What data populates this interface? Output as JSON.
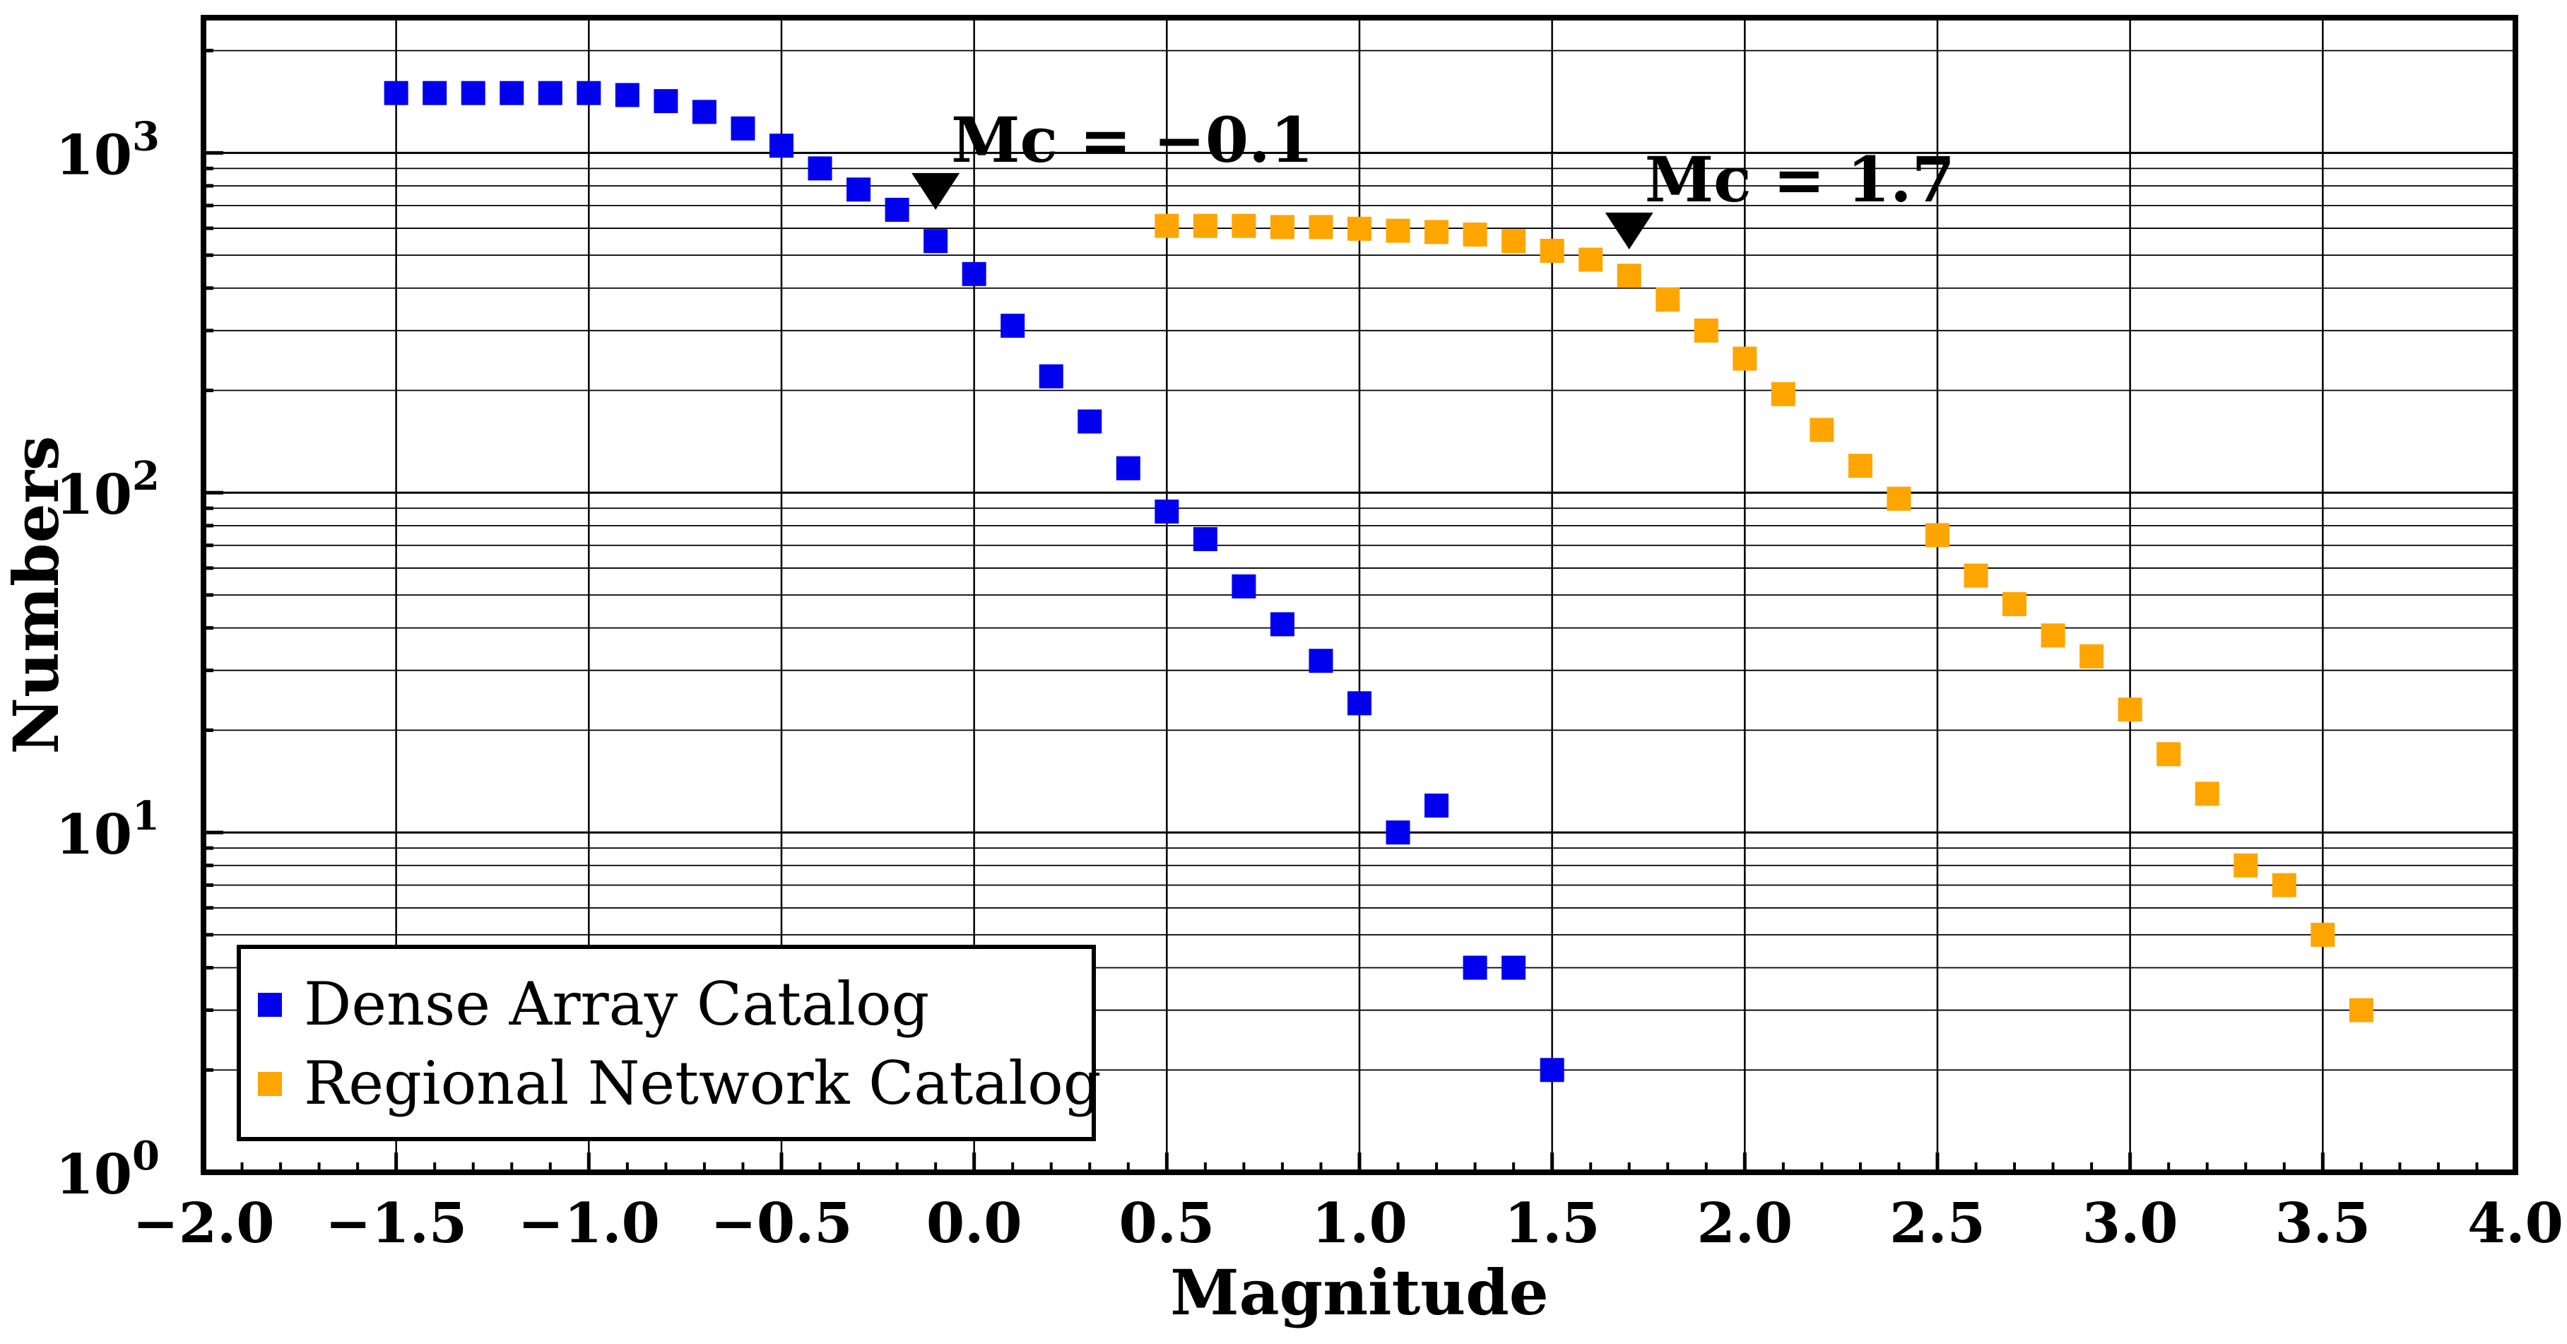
{
  "chart_data": {
    "type": "scatter",
    "title": "",
    "xlabel": "Magnitude",
    "ylabel": "Numbers",
    "xlim": [
      -2.0,
      4.0
    ],
    "ylim": [
      1,
      2500
    ],
    "yscale": "log",
    "grid": true,
    "x_ticks": [
      "−2.0",
      "−1.5",
      "−1.0",
      "−0.5",
      "0.0",
      "0.5",
      "1.0",
      "1.5",
      "2.0",
      "2.5",
      "3.0",
      "3.5",
      "4.0"
    ],
    "y_ticks": [
      {
        "base": "10",
        "exp": "0"
      },
      {
        "base": "10",
        "exp": "1"
      },
      {
        "base": "10",
        "exp": "2"
      },
      {
        "base": "10",
        "exp": "3"
      }
    ],
    "series": [
      {
        "name": "Dense Array Catalog",
        "color": "#0000ee",
        "points": [
          [
            -1.5,
            1500
          ],
          [
            -1.4,
            1500
          ],
          [
            -1.3,
            1500
          ],
          [
            -1.2,
            1500
          ],
          [
            -1.1,
            1500
          ],
          [
            -1.0,
            1500
          ],
          [
            -0.9,
            1480
          ],
          [
            -0.8,
            1420
          ],
          [
            -0.7,
            1320
          ],
          [
            -0.6,
            1180
          ],
          [
            -0.5,
            1050
          ],
          [
            -0.4,
            900
          ],
          [
            -0.3,
            780
          ],
          [
            -0.2,
            680
          ],
          [
            -0.1,
            550
          ],
          [
            0.0,
            440
          ],
          [
            0.1,
            310
          ],
          [
            0.2,
            220
          ],
          [
            0.3,
            162
          ],
          [
            0.4,
            118
          ],
          [
            0.5,
            88
          ],
          [
            0.6,
            73
          ],
          [
            0.7,
            53
          ],
          [
            0.8,
            41
          ],
          [
            0.9,
            32
          ],
          [
            1.0,
            24
          ],
          [
            1.1,
            10
          ],
          [
            1.2,
            12
          ],
          [
            1.3,
            4
          ],
          [
            1.4,
            4
          ],
          [
            1.5,
            2
          ]
        ]
      },
      {
        "name": "Regional Network Catalog",
        "color": "#ffa500",
        "points": [
          [
            0.5,
            610
          ],
          [
            0.6,
            610
          ],
          [
            0.7,
            610
          ],
          [
            0.8,
            605
          ],
          [
            0.9,
            605
          ],
          [
            1.0,
            598
          ],
          [
            1.1,
            590
          ],
          [
            1.2,
            585
          ],
          [
            1.3,
            575
          ],
          [
            1.4,
            550
          ],
          [
            1.5,
            515
          ],
          [
            1.6,
            485
          ],
          [
            1.7,
            435
          ],
          [
            1.8,
            370
          ],
          [
            1.9,
            300
          ],
          [
            2.0,
            248
          ],
          [
            2.1,
            195
          ],
          [
            2.2,
            153
          ],
          [
            2.3,
            120
          ],
          [
            2.4,
            96
          ],
          [
            2.5,
            75
          ],
          [
            2.6,
            57
          ],
          [
            2.7,
            47
          ],
          [
            2.8,
            38
          ],
          [
            2.9,
            33
          ],
          [
            3.0,
            23
          ],
          [
            3.1,
            17
          ],
          [
            3.2,
            13
          ],
          [
            3.3,
            8
          ],
          [
            3.4,
            7
          ],
          [
            3.5,
            5
          ],
          [
            3.6,
            3
          ]
        ]
      }
    ],
    "annotations": [
      {
        "label": "Mc = −0.1",
        "x": -0.1,
        "marker_y": 680
      },
      {
        "label": "Mc = 1.7",
        "x": 1.7,
        "marker_y": 520
      }
    ],
    "legend_position": "bottom-left"
  }
}
